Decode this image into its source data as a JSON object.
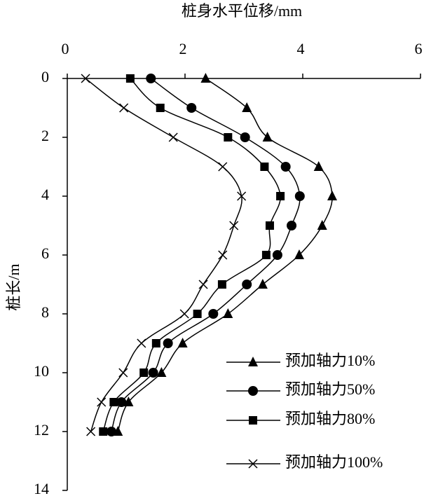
{
  "chart_data": {
    "type": "line",
    "title": "桩身水平位移/mm",
    "y_label": "桩长/m",
    "y": [
      0,
      1,
      2,
      3,
      4,
      5,
      6,
      7,
      8,
      9,
      10,
      11,
      12
    ],
    "series": [
      {
        "name": "预加轴力10%",
        "color": "#000000",
        "marker": "triangle",
        "values": [
          2.35,
          3.05,
          3.4,
          4.27,
          4.5,
          4.33,
          3.94,
          3.32,
          2.73,
          1.96,
          1.6,
          1.04,
          0.86
        ]
      },
      {
        "name": "预加轴力50%",
        "color": "#000000",
        "marker": "circle",
        "values": [
          1.42,
          2.11,
          3.02,
          3.71,
          3.95,
          3.81,
          3.57,
          3.05,
          2.48,
          1.71,
          1.46,
          0.92,
          0.75
        ]
      },
      {
        "name": "预加轴力80%",
        "color": "#000000",
        "marker": "square",
        "values": [
          1.07,
          1.58,
          2.73,
          3.35,
          3.62,
          3.44,
          3.38,
          2.63,
          2.21,
          1.51,
          1.3,
          0.79,
          0.61
        ]
      },
      {
        "name": "预加轴力100%",
        "color": "#000000",
        "marker": "x",
        "values": [
          0.31,
          0.96,
          1.8,
          2.64,
          2.96,
          2.83,
          2.64,
          2.31,
          1.99,
          1.26,
          0.95,
          0.58,
          0.4
        ]
      }
    ],
    "xlim": [
      0,
      6
    ],
    "xticks": [
      0,
      2,
      4,
      6
    ],
    "ylim": [
      0,
      14
    ],
    "yticks": [
      0,
      2,
      4,
      6,
      8,
      10,
      12,
      14
    ],
    "y_inverted": true,
    "x_axis_position": "top",
    "legend": "lower right"
  }
}
